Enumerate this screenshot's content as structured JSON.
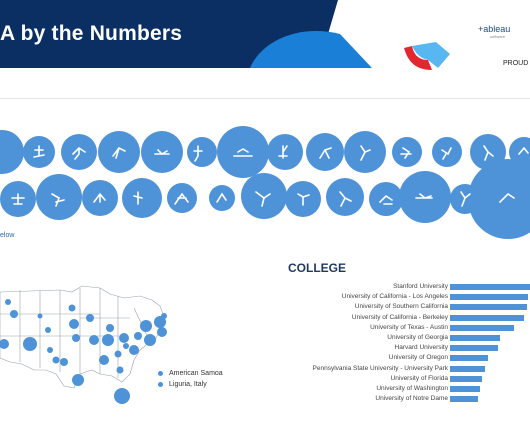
{
  "header": {
    "title": "A by the Numbers",
    "brand": "+ableau",
    "brand_sub": "software",
    "proud": "PROUD"
  },
  "sports": {
    "link_text": "elow"
  },
  "map": {
    "legend": [
      "American Samoa",
      "Liguria, Italy"
    ]
  },
  "college": {
    "title": "COLLEGE",
    "bar_color": "#4e92d8",
    "items": [
      {
        "label": "Stanford University",
        "value": 1.0
      },
      {
        "label": "University of California - Los Angeles",
        "value": 0.98
      },
      {
        "label": "University of Southern California",
        "value": 0.96
      },
      {
        "label": "University of California - Berkeley",
        "value": 0.93
      },
      {
        "label": "University of Texas - Austin",
        "value": 0.8
      },
      {
        "label": "University of Georgia",
        "value": 0.63
      },
      {
        "label": "Harvard University",
        "value": 0.6
      },
      {
        "label": "University of Oregon",
        "value": 0.48
      },
      {
        "label": "Pennsylvania State University - University Park",
        "value": 0.44
      },
      {
        "label": "University of Florida",
        "value": 0.4
      },
      {
        "label": "University of Washington",
        "value": 0.37
      },
      {
        "label": "University of Notre Dame",
        "value": 0.35
      }
    ]
  },
  "colors": {
    "navy": "#0b2f63",
    "accent_blue": "#1a7fd6",
    "circle_blue": "#4e92d8"
  }
}
